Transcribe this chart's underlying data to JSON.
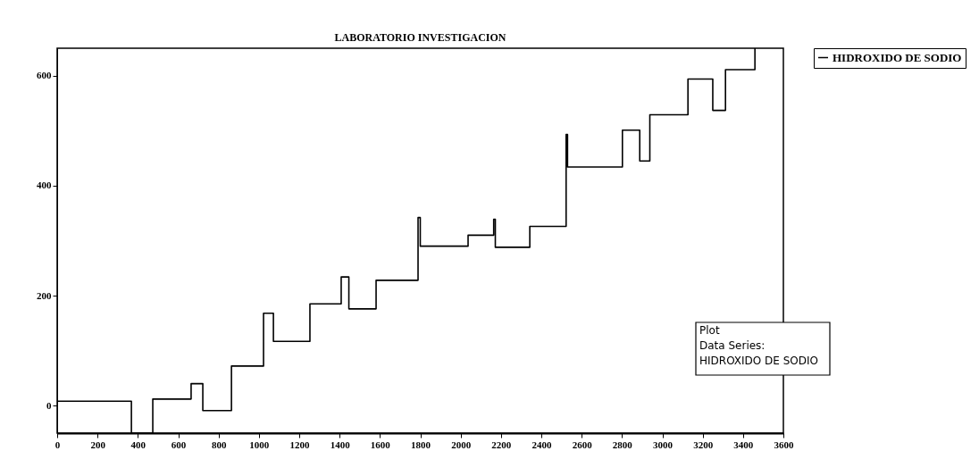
{
  "chart_data": {
    "type": "step",
    "title": "LABORATORIO INVESTIGACION",
    "x": [
      0,
      368,
      474,
      664,
      722,
      864,
      1023,
      1072,
      1253,
      1408,
      1446,
      1581,
      1789,
      1800,
      2037,
      2164,
      2172,
      2343,
      2523,
      2530,
      2802,
      2888,
      2938,
      3127,
      3250,
      3313,
      3459
    ],
    "series": [
      {
        "name": "HIDROXIDO DE SODIO",
        "color": "#000000",
        "values": [
          8,
          -50,
          12,
          40,
          -9,
          72,
          168,
          117,
          185,
          234,
          176,
          228,
          342,
          290,
          310,
          339,
          288,
          326,
          493,
          434,
          501,
          445,
          529,
          594,
          537,
          611,
          650
        ]
      }
    ],
    "xlim": [
      0,
      3600
    ],
    "xticks": [
      0,
      200,
      400,
      600,
      800,
      1000,
      1200,
      1400,
      1600,
      1800,
      2000,
      2200,
      2400,
      2600,
      2800,
      3000,
      3200,
      3400,
      3600
    ],
    "ylim": [
      -50,
      650
    ],
    "yticks": [
      0,
      200,
      400,
      600
    ],
    "grid": false,
    "legend": "top right",
    "marker": "none",
    "line_style": "solid",
    "annotations": [
      "Plot",
      "Data Series:",
      "HIDROXIDO DE SODIO"
    ]
  }
}
